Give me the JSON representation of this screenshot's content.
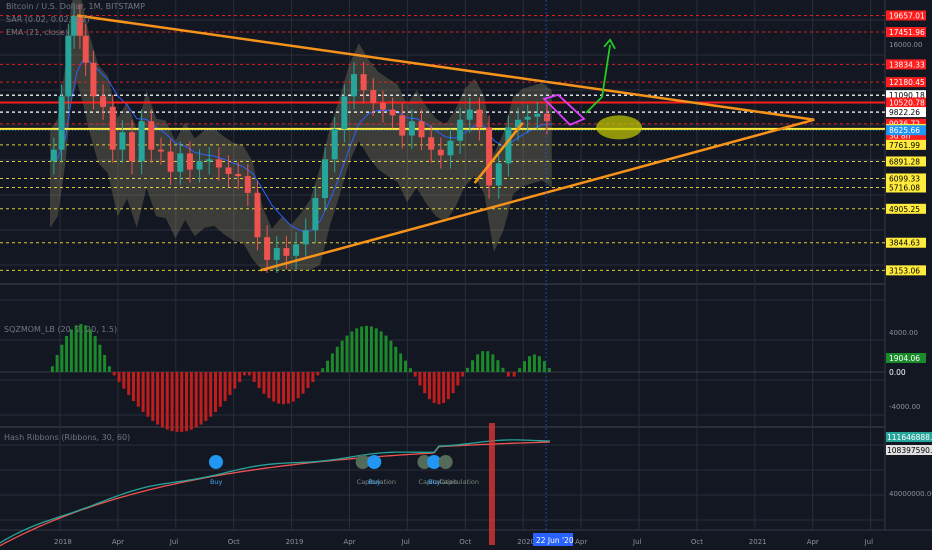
{
  "header": {
    "main_title": "Bitcoin / U.S. Dollar, 1M, BITSTAMP",
    "sar_label": "SAR (0.02, 0.02, 0.2)",
    "ema_label": "EMA (21, close)",
    "sqz_label": "SQZMOM_LB (20, 2, 20, 1.5)",
    "hash_label": "Hash Ribbons (Ribbons, 30, 60)"
  },
  "colors": {
    "background": "#131722",
    "grid": "#2a2e39",
    "bull": "#26a69a",
    "bear": "#ef5350",
    "trend_line": "#f7931a",
    "support": "#ffeb3b",
    "resistance": "#ff1e1e",
    "white_level": "#ffffff",
    "ema": "#2962ff",
    "sqz_pos": "#1b8a2a",
    "sqz_neg": "#c01d1d",
    "hash_fast": "#26a69a",
    "hash_slow": "#ef5350",
    "arrow": "#22cc22",
    "flag": "#e040fb",
    "target_ellipse": "#c8cc00"
  },
  "price_levels": [
    {
      "label": "19657.01",
      "price": 19657.01,
      "kind": "resistance"
    },
    {
      "label": "17451.96",
      "price": 17451.96,
      "kind": "resistance"
    },
    {
      "label": "13834.33",
      "price": 13834.33,
      "kind": "resistance"
    },
    {
      "label": "12180.45",
      "price": 12180.45,
      "kind": "resistance"
    },
    {
      "label": "11090.18",
      "price": 11090.18,
      "kind": "white"
    },
    {
      "label": "10520.78",
      "price": 10520.78,
      "kind": "resistance"
    },
    {
      "label": "9822.26",
      "price": 9822.26,
      "kind": "white"
    },
    {
      "label": "9036.72",
      "price": 9036.72,
      "kind": "resistance"
    },
    {
      "label": "3d 8h",
      "price": 8400,
      "kind": "countdown"
    },
    {
      "label": "8704.24",
      "price": 8704.24,
      "kind": "support"
    },
    {
      "label": "8625.66",
      "price": 8625.66,
      "kind": "current"
    },
    {
      "label": "7761.99",
      "price": 7761.99,
      "kind": "support"
    },
    {
      "label": "6891.28",
      "price": 6891.28,
      "kind": "support"
    },
    {
      "label": "6099.33",
      "price": 6099.33,
      "kind": "support"
    },
    {
      "label": "5716.08",
      "price": 5716.08,
      "kind": "support"
    },
    {
      "label": "4905.25",
      "price": 4905.25,
      "kind": "support"
    },
    {
      "label": "3844.63",
      "price": 3844.63,
      "kind": "support"
    },
    {
      "label": "3153.06",
      "price": 3153.06,
      "kind": "support"
    }
  ],
  "chart_data": [
    {
      "type": "candlestick",
      "title": "Bitcoin / U.S. Dollar, 1M, BITSTAMP",
      "y_scale": "log",
      "yticks": [
        "16000.00"
      ],
      "x_tick_labels": [
        "2018",
        "Apr",
        "Jul",
        "Oct",
        "2019",
        "Apr",
        "Jul",
        "Oct",
        "2020",
        "Apr",
        "Jul",
        "Oct",
        "2021",
        "Apr",
        "Jul"
      ],
      "x_cursor_label": "22 Jun '20",
      "annotations": [
        "triangle trend lines",
        "bull flag",
        "breakout arrow",
        "target ellipse"
      ],
      "price_path": [
        {
          "t": 0,
          "v": 6900
        },
        {
          "t": 0.4,
          "v": 7500
        },
        {
          "t": 0.8,
          "v": 11000
        },
        {
          "t": 1.1,
          "v": 17000
        },
        {
          "t": 1.4,
          "v": 19600
        },
        {
          "t": 1.7,
          "v": 17000
        },
        {
          "t": 2.0,
          "v": 14000
        },
        {
          "t": 2.5,
          "v": 11000
        },
        {
          "t": 3.0,
          "v": 10200
        },
        {
          "t": 3.5,
          "v": 7500
        },
        {
          "t": 4.0,
          "v": 8500
        },
        {
          "t": 4.5,
          "v": 6900
        },
        {
          "t": 5.0,
          "v": 9200
        },
        {
          "t": 5.5,
          "v": 7500
        },
        {
          "t": 6.0,
          "v": 7400
        },
        {
          "t": 6.5,
          "v": 6400
        },
        {
          "t": 7.0,
          "v": 7300
        },
        {
          "t": 7.5,
          "v": 6500
        },
        {
          "t": 8.0,
          "v": 6900
        },
        {
          "t": 8.5,
          "v": 7000
        },
        {
          "t": 9.0,
          "v": 6600
        },
        {
          "t": 9.5,
          "v": 6300
        },
        {
          "t": 10.0,
          "v": 6200
        },
        {
          "t": 10.5,
          "v": 5500
        },
        {
          "t": 11.0,
          "v": 4000
        },
        {
          "t": 11.5,
          "v": 3400
        },
        {
          "t": 12.0,
          "v": 3700
        },
        {
          "t": 12.5,
          "v": 3500
        },
        {
          "t": 13.0,
          "v": 3800
        },
        {
          "t": 13.5,
          "v": 4200
        },
        {
          "t": 14.0,
          "v": 5300
        },
        {
          "t": 14.5,
          "v": 7000
        },
        {
          "t": 15.0,
          "v": 8700
        },
        {
          "t": 15.5,
          "v": 11000
        },
        {
          "t": 16.0,
          "v": 12900
        },
        {
          "t": 16.5,
          "v": 11500
        },
        {
          "t": 17.0,
          "v": 10500
        },
        {
          "t": 17.5,
          "v": 10000
        },
        {
          "t": 18.0,
          "v": 9600
        },
        {
          "t": 18.5,
          "v": 8300
        },
        {
          "t": 19.0,
          "v": 9200
        },
        {
          "t": 19.5,
          "v": 8200
        },
        {
          "t": 20.0,
          "v": 7500
        },
        {
          "t": 20.5,
          "v": 7200
        },
        {
          "t": 21.0,
          "v": 8000
        },
        {
          "t": 21.5,
          "v": 9300
        },
        {
          "t": 22.0,
          "v": 10000
        },
        {
          "t": 22.5,
          "v": 8800
        },
        {
          "t": 23.0,
          "v": 5800
        },
        {
          "t": 23.5,
          "v": 6800
        },
        {
          "t": 24.0,
          "v": 8800
        },
        {
          "t": 24.5,
          "v": 9300
        },
        {
          "t": 25.0,
          "v": 9500
        },
        {
          "t": 25.5,
          "v": 9700
        },
        {
          "t": 26.0,
          "v": 9200
        }
      ]
    },
    {
      "type": "bar",
      "title": "SQZMOM_LB (20, 2, 20, 1.5)",
      "yticks": [
        "4000.00",
        "0.00",
        "-4000.00"
      ],
      "last_value": "1904.06",
      "last_value_2": "0.00",
      "segments": [
        {
          "from": 0,
          "to": 3.2,
          "peak": 5200,
          "sign": 1
        },
        {
          "from": 3.2,
          "to": 10.2,
          "peak": -6500,
          "sign": -1
        },
        {
          "from": 10.2,
          "to": 14.0,
          "peak": -3500,
          "sign": -1
        },
        {
          "from": 14.0,
          "to": 18.8,
          "peak": 5000,
          "sign": 1
        },
        {
          "from": 18.8,
          "to": 21.5,
          "peak": -3500,
          "sign": -1
        },
        {
          "from": 21.5,
          "to": 23.6,
          "peak": 2300,
          "sign": 1
        },
        {
          "from": 23.6,
          "to": 24.2,
          "peak": -700,
          "sign": -1
        },
        {
          "from": 24.2,
          "to": 26.0,
          "peak": 1900,
          "sign": 1
        }
      ]
    },
    {
      "type": "line",
      "title": "Hash Ribbons (Ribbons, 30, 60)",
      "yticks": [
        "40000000.00"
      ],
      "last_value": "111646888.04",
      "last_value_2": "108397590.10",
      "signals": [
        {
          "t": 8.6,
          "label": "Buy"
        },
        {
          "t": 16.2,
          "label": "Capitulation"
        },
        {
          "t": 16.8,
          "label": "Buy"
        },
        {
          "t": 19.4,
          "label": "Capitulation"
        },
        {
          "t": 19.9,
          "label": "Buy"
        },
        {
          "t": 20.5,
          "label": "Capitulation"
        }
      ]
    }
  ]
}
